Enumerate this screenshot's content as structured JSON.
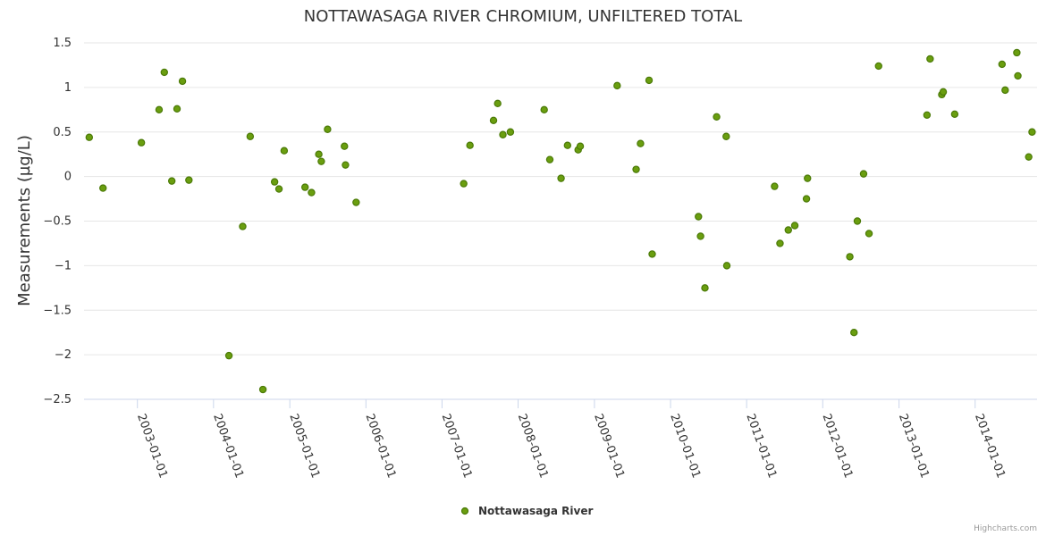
{
  "chart_data": {
    "type": "scatter",
    "title": "NOTTAWASAGA RIVER CHROMIUM, UNFILTERED TOTAL",
    "xlabel": "",
    "ylabel": "Measurements (µg/L)",
    "x_type": "date",
    "xlim": [
      "2002-04-20",
      "2014-10-25"
    ],
    "ylim": [
      -2.5,
      1.5
    ],
    "y_ticks": [
      "1.5",
      "1",
      "0.5",
      "0",
      "−0.5",
      "−1",
      "−1.5",
      "−2",
      "−2.5"
    ],
    "x_ticks": [
      "2003-01-01",
      "2004-01-01",
      "2005-01-01",
      "2006-01-01",
      "2007-01-01",
      "2008-01-01",
      "2009-01-01",
      "2010-01-01",
      "2011-01-01",
      "2012-01-01",
      "2013-01-01",
      "2014-01-01"
    ],
    "grid": true,
    "legend_position": "bottom-center",
    "marker_color": "#6a9e0f",
    "marker_stroke": "#4b7a08",
    "series": [
      {
        "name": "Nottawasaga River",
        "points": [
          {
            "x": "2002-05-15",
            "y": 0.44
          },
          {
            "x": "2002-07-20",
            "y": -0.13
          },
          {
            "x": "2003-01-20",
            "y": 0.38
          },
          {
            "x": "2003-04-15",
            "y": 0.75
          },
          {
            "x": "2003-05-10",
            "y": 1.17
          },
          {
            "x": "2003-06-15",
            "y": -0.05
          },
          {
            "x": "2003-07-10",
            "y": 0.76
          },
          {
            "x": "2003-08-05",
            "y": 1.07
          },
          {
            "x": "2003-09-05",
            "y": -0.04
          },
          {
            "x": "2004-03-15",
            "y": -2.01
          },
          {
            "x": "2004-05-20",
            "y": -0.56
          },
          {
            "x": "2004-06-25",
            "y": 0.45
          },
          {
            "x": "2004-08-25",
            "y": -2.39
          },
          {
            "x": "2004-10-20",
            "y": -0.06
          },
          {
            "x": "2004-11-10",
            "y": -0.14
          },
          {
            "x": "2004-12-05",
            "y": 0.29
          },
          {
            "x": "2005-03-15",
            "y": -0.12
          },
          {
            "x": "2005-04-15",
            "y": -0.18
          },
          {
            "x": "2005-05-20",
            "y": 0.25
          },
          {
            "x": "2005-06-01",
            "y": 0.17
          },
          {
            "x": "2005-07-01",
            "y": 0.53
          },
          {
            "x": "2005-09-20",
            "y": 0.34
          },
          {
            "x": "2005-09-25",
            "y": 0.13
          },
          {
            "x": "2005-11-15",
            "y": -0.29
          },
          {
            "x": "2007-04-15",
            "y": -0.08
          },
          {
            "x": "2007-05-15",
            "y": 0.35
          },
          {
            "x": "2007-09-05",
            "y": 0.63
          },
          {
            "x": "2007-09-25",
            "y": 0.82
          },
          {
            "x": "2007-10-20",
            "y": 0.47
          },
          {
            "x": "2007-11-25",
            "y": 0.5
          },
          {
            "x": "2008-05-05",
            "y": 0.75
          },
          {
            "x": "2008-06-01",
            "y": 0.19
          },
          {
            "x": "2008-07-25",
            "y": -0.02
          },
          {
            "x": "2008-08-25",
            "y": 0.35
          },
          {
            "x": "2008-10-15",
            "y": 0.3
          },
          {
            "x": "2008-10-25",
            "y": 0.34
          },
          {
            "x": "2009-04-20",
            "y": 1.02
          },
          {
            "x": "2009-07-20",
            "y": 0.08
          },
          {
            "x": "2009-08-10",
            "y": 0.37
          },
          {
            "x": "2009-09-20",
            "y": 1.08
          },
          {
            "x": "2009-10-05",
            "y": -0.87
          },
          {
            "x": "2010-05-15",
            "y": -0.45
          },
          {
            "x": "2010-05-25",
            "y": -0.67
          },
          {
            "x": "2010-06-15",
            "y": -1.25
          },
          {
            "x": "2010-08-10",
            "y": 0.67
          },
          {
            "x": "2010-09-25",
            "y": 0.45
          },
          {
            "x": "2010-09-28",
            "y": -1.0
          },
          {
            "x": "2011-05-15",
            "y": -0.11
          },
          {
            "x": "2011-06-10",
            "y": -0.75
          },
          {
            "x": "2011-07-20",
            "y": -0.6
          },
          {
            "x": "2011-08-20",
            "y": -0.55
          },
          {
            "x": "2011-10-15",
            "y": -0.25
          },
          {
            "x": "2011-10-20",
            "y": -0.02
          },
          {
            "x": "2012-05-10",
            "y": -0.9
          },
          {
            "x": "2012-05-30",
            "y": -1.75
          },
          {
            "x": "2012-06-15",
            "y": -0.5
          },
          {
            "x": "2012-07-15",
            "y": 0.03
          },
          {
            "x": "2012-08-10",
            "y": -0.64
          },
          {
            "x": "2012-09-25",
            "y": 1.24
          },
          {
            "x": "2013-05-15",
            "y": 0.69
          },
          {
            "x": "2013-05-30",
            "y": 1.32
          },
          {
            "x": "2013-07-25",
            "y": 0.92
          },
          {
            "x": "2013-08-01",
            "y": 0.95
          },
          {
            "x": "2013-09-25",
            "y": 0.7
          },
          {
            "x": "2014-05-10",
            "y": 1.26
          },
          {
            "x": "2014-05-25",
            "y": 0.97
          },
          {
            "x": "2014-07-20",
            "y": 1.39
          },
          {
            "x": "2014-07-25",
            "y": 1.13
          },
          {
            "x": "2014-09-15",
            "y": 0.22
          },
          {
            "x": "2014-10-01",
            "y": 0.5
          }
        ]
      }
    ]
  },
  "credits": "Highcharts.com"
}
